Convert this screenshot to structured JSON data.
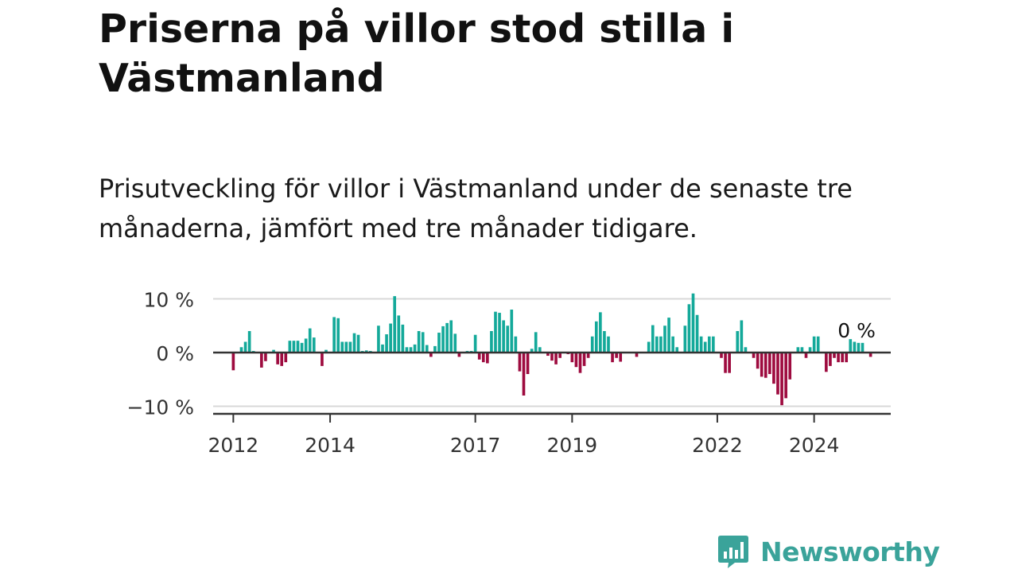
{
  "title": "Priserna på villor stod stilla i Västmanland",
  "subtitle": "Prisutveckling för villor i Västmanland under de senaste tre månaderna, jämfört med tre månader tidigare.",
  "brand": {
    "name": "Newsworthy",
    "color": "#3aa39a"
  },
  "colors": {
    "positive": "#14a99a",
    "negative": "#9e0b3f",
    "gridline": "#d8d8d8",
    "zeroline": "#333333"
  },
  "chart_data": {
    "type": "bar",
    "title": "Priserna på villor stod stilla i Västmanland",
    "subtitle": "Prisutveckling för villor i Västmanland under de senaste tre månaderna, jämfört med tre månader tidigare.",
    "x_start": "2011-08",
    "x_end": "2025-08",
    "x_ticks": [
      {
        "value": "2012-01",
        "label": "2012"
      },
      {
        "value": "2014-01",
        "label": "2014"
      },
      {
        "value": "2017-01",
        "label": "2017"
      },
      {
        "value": "2019-01",
        "label": "2019"
      },
      {
        "value": "2022-01",
        "label": "2022"
      },
      {
        "value": "2024-01",
        "label": "2024"
      }
    ],
    "y_ticks": [
      {
        "value": 10,
        "label": "10 %"
      },
      {
        "value": 0,
        "label": "0 %"
      },
      {
        "value": -10,
        "label": "−10 %"
      }
    ],
    "ylim": [
      -11.5,
      11.5
    ],
    "grid": true,
    "series": [
      {
        "start": "2012-01",
        "values": [
          -3.3,
          0.1,
          1.0,
          2.0,
          4.0,
          0.3,
          0.0,
          -2.8,
          -1.6,
          0.0,
          0.5,
          -2.2,
          -2.5,
          -1.8,
          2.2,
          2.2,
          2.2,
          1.8,
          2.6,
          4.5,
          2.8,
          0.0,
          -2.5,
          0.5,
          0.0,
          6.6,
          6.4,
          2.0,
          2.0,
          2.0,
          3.6,
          3.3,
          0.3,
          0.4,
          0.3,
          0.0,
          5.0,
          1.5,
          3.4,
          5.4,
          10.5,
          6.9,
          5.2,
          1.0,
          1.0,
          1.5,
          4.0,
          3.8,
          1.4,
          -0.8,
          1.2,
          3.7,
          4.9,
          5.5,
          6.0,
          3.5,
          -0.8,
          0.0,
          0.3,
          0.3,
          3.3,
          -1.3,
          -1.8,
          -2.0,
          4.0,
          7.6,
          7.4,
          6.0,
          5.0,
          8.0,
          3.0,
          -3.5,
          -8.0,
          -4.0,
          0.7,
          3.8,
          1.0,
          0.0,
          -0.6,
          -1.5,
          -2.2,
          -1.0,
          0.0,
          -0.3,
          -1.8,
          -2.7,
          -3.8,
          -2.5,
          -1.0,
          3.0,
          5.8,
          7.5,
          4.0,
          3.0,
          -1.8,
          -1.0,
          -1.7,
          0.0,
          0.0,
          0.0,
          -0.8,
          0.0,
          0.0,
          2.0,
          5.1,
          3.0,
          3.0,
          5.0,
          6.5,
          3.0,
          1.0,
          0.0,
          5.0,
          9.0,
          11.0,
          7.0,
          3.0,
          2.0,
          3.0,
          3.0,
          0.0,
          -1.0,
          -3.8,
          -3.8,
          0.0,
          4.0,
          6.0,
          1.0,
          0.0,
          -1.0,
          -3.0,
          -4.5,
          -4.7,
          -4.0,
          -5.8,
          -7.8,
          -9.8,
          -8.5,
          -5.0,
          0.0,
          1.0,
          1.0,
          -1.0,
          1.0,
          3.0,
          3.0,
          0.0,
          -3.6,
          -2.5,
          -1.0,
          -1.8,
          -1.8,
          -1.8,
          2.5,
          2.0,
          1.8,
          1.8,
          0.0,
          -0.8
        ]
      }
    ],
    "annotation": {
      "x": "2024-07",
      "label": "0 %"
    }
  }
}
